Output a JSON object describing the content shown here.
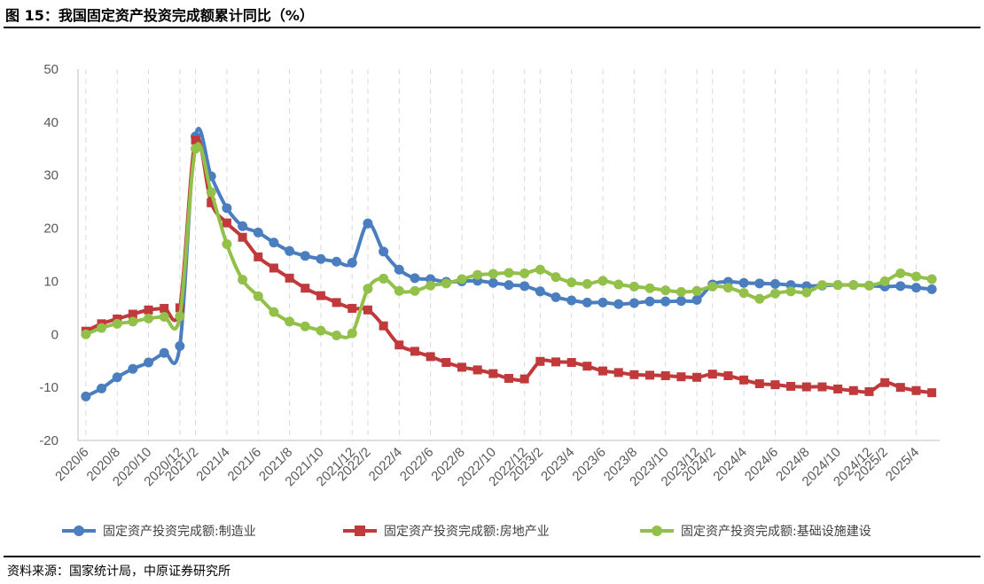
{
  "title": "图 15：我国固定资产投资完成额累计同比（%）",
  "source": "资料来源：国家统计局，中原证券研究所",
  "colors": {
    "manufacturing": "#4a7ebf",
    "real_estate": "#c0393b",
    "infrastructure": "#92c048",
    "grid": "#d9d9d9",
    "axis": "#bfbfbf"
  },
  "chart_data": {
    "type": "line",
    "title": "我国固定资产投资完成额累计同比（%）",
    "ylabel": "%",
    "ylim": [
      -20,
      50
    ],
    "yticks": [
      -20,
      -10,
      0,
      10,
      20,
      30,
      40,
      50
    ],
    "x": [
      "2020/6",
      "2020/7",
      "2020/8",
      "2020/9",
      "2020/10",
      "2020/11",
      "2020/12",
      "2021/2",
      "2021/3",
      "2021/4",
      "2021/5",
      "2021/6",
      "2021/7",
      "2021/8",
      "2021/9",
      "2021/10",
      "2021/11",
      "2021/12",
      "2022/2",
      "2022/3",
      "2022/4",
      "2022/5",
      "2022/6",
      "2022/7",
      "2022/8",
      "2022/9",
      "2022/10",
      "2022/11",
      "2022/12",
      "2023/2",
      "2023/3",
      "2023/4",
      "2023/5",
      "2023/6",
      "2023/7",
      "2023/8",
      "2023/9",
      "2023/10",
      "2023/11",
      "2023/12",
      "2024/2",
      "2024/3",
      "2024/4",
      "2024/5",
      "2024/6",
      "2024/7",
      "2024/8",
      "2024/9",
      "2024/10",
      "2024/11",
      "2024/12",
      "2025/2",
      "2025/3",
      "2025/4",
      "2025/5"
    ],
    "xticklabels": [
      "2020/6",
      "2020/8",
      "2020/10",
      "2020/12",
      "2021/2",
      "2021/4",
      "2021/6",
      "2021/8",
      "2021/10",
      "2021/12",
      "2022/2",
      "2022/4",
      "2022/6",
      "2022/8",
      "2022/10",
      "2022/12",
      "2023/2",
      "2023/4",
      "2023/6",
      "2023/8",
      "2023/10",
      "2023/12",
      "2024/2",
      "2024/4",
      "2024/6",
      "2024/8",
      "2024/10",
      "2024/12",
      "2025/2",
      "2025/4"
    ],
    "series": [
      {
        "name": "固定资产投资完成额:制造业",
        "values": [
          -11.7,
          -10.2,
          -8.1,
          -6.5,
          -5.3,
          -3.5,
          -2.2,
          37.3,
          29.8,
          23.8,
          20.4,
          19.2,
          17.3,
          15.7,
          14.8,
          14.2,
          13.7,
          13.5,
          20.9,
          15.6,
          12.2,
          10.6,
          10.4,
          9.9,
          10.0,
          10.1,
          9.7,
          9.3,
          9.1,
          8.1,
          7.0,
          6.4,
          6.0,
          6.0,
          5.7,
          5.9,
          6.2,
          6.2,
          6.3,
          6.5,
          9.4,
          9.9,
          9.7,
          9.6,
          9.5,
          9.3,
          9.1,
          9.2,
          9.3,
          9.3,
          9.2,
          9.0,
          9.1,
          8.8,
          8.5
        ]
      },
      {
        "name": "固定资产投资完成额:房地产业",
        "values": [
          0.6,
          2.0,
          2.9,
          3.8,
          4.6,
          4.9,
          5.0,
          36.6,
          24.8,
          21.0,
          18.3,
          14.6,
          12.5,
          10.6,
          8.7,
          7.3,
          6.0,
          4.9,
          4.6,
          1.6,
          -2.0,
          -3.2,
          -4.2,
          -5.3,
          -6.2,
          -6.7,
          -7.4,
          -8.3,
          -8.4,
          -5.1,
          -5.2,
          -5.3,
          -6.0,
          -6.9,
          -7.2,
          -7.6,
          -7.7,
          -7.8,
          -8.0,
          -8.1,
          -7.5,
          -7.8,
          -8.6,
          -9.3,
          -9.5,
          -9.8,
          -9.9,
          -9.9,
          -10.3,
          -10.6,
          -10.8,
          -9.1,
          -10.0,
          -10.6,
          -11.0
        ]
      },
      {
        "name": "固定资产投资完成额:基础设施建设",
        "values": [
          0.0,
          1.2,
          2.0,
          2.4,
          3.0,
          3.3,
          3.4,
          35.0,
          26.8,
          17.0,
          10.3,
          7.2,
          4.2,
          2.4,
          1.5,
          0.7,
          -0.2,
          0.2,
          8.6,
          10.5,
          8.2,
          8.2,
          9.2,
          9.6,
          10.4,
          11.2,
          11.4,
          11.6,
          11.5,
          12.2,
          10.8,
          9.8,
          9.5,
          10.1,
          9.4,
          9.0,
          8.7,
          8.3,
          8.0,
          8.2,
          9.0,
          8.8,
          7.8,
          6.7,
          7.7,
          8.1,
          7.9,
          9.3,
          9.3,
          9.3,
          9.2,
          10.0,
          11.5,
          10.9,
          10.4
        ]
      }
    ],
    "legend_position": "bottom"
  }
}
